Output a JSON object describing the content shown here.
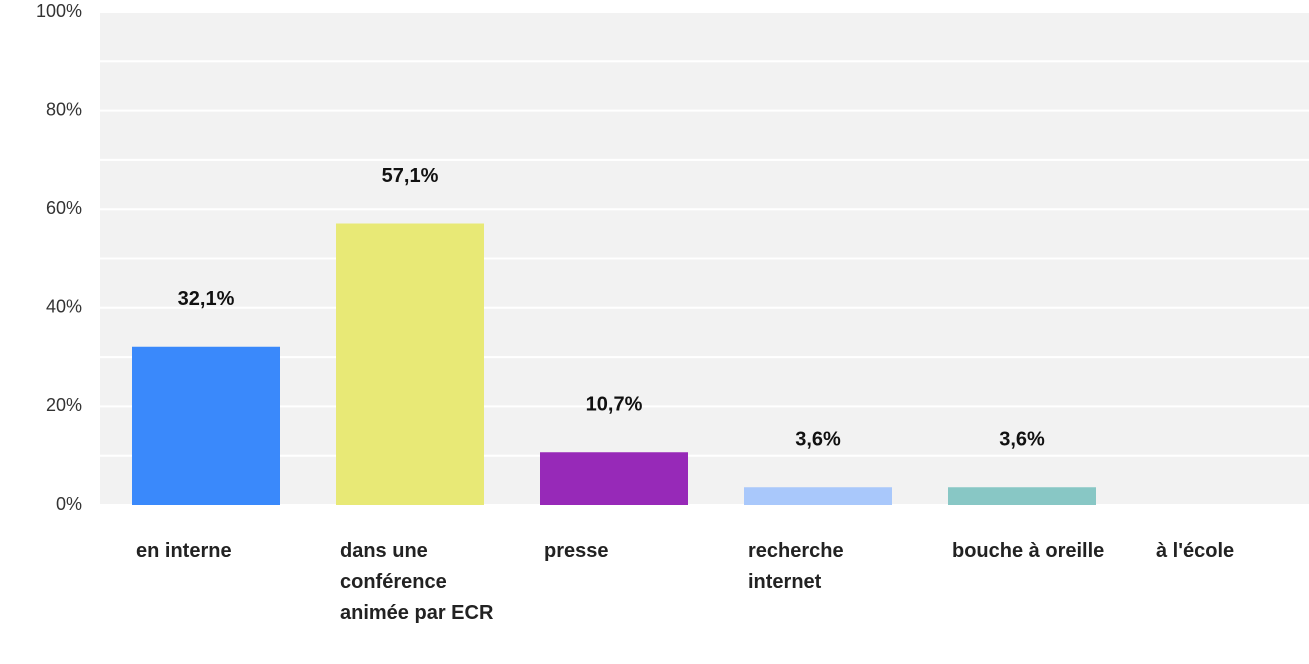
{
  "chart_data": {
    "type": "bar",
    "categories": [
      "en interne",
      "dans une conférence animée par ECR",
      "presse",
      "recherche internet",
      "bouche à oreille",
      "à l'école"
    ],
    "values": [
      32.1,
      57.1,
      10.7,
      3.6,
      3.6,
      0
    ],
    "value_labels": [
      "32,1%",
      "57,1%",
      "10,7%",
      "3,6%",
      "3,6%",
      null
    ],
    "colors": [
      "#3a89fb",
      "#e8e976",
      "#9729b8",
      "#a9c8fb",
      "#88c7c5",
      "#cccccc"
    ],
    "ylim": [
      0,
      100
    ],
    "yticks": [
      {
        "value": 0,
        "label": "0%"
      },
      {
        "value": 20,
        "label": "20%"
      },
      {
        "value": 40,
        "label": "40%"
      },
      {
        "value": 60,
        "label": "60%"
      },
      {
        "value": 80,
        "label": "80%"
      },
      {
        "value": 100,
        "label": "100%"
      }
    ],
    "minor_yticks": [
      10,
      30,
      50,
      70,
      90
    ],
    "grid": true
  }
}
